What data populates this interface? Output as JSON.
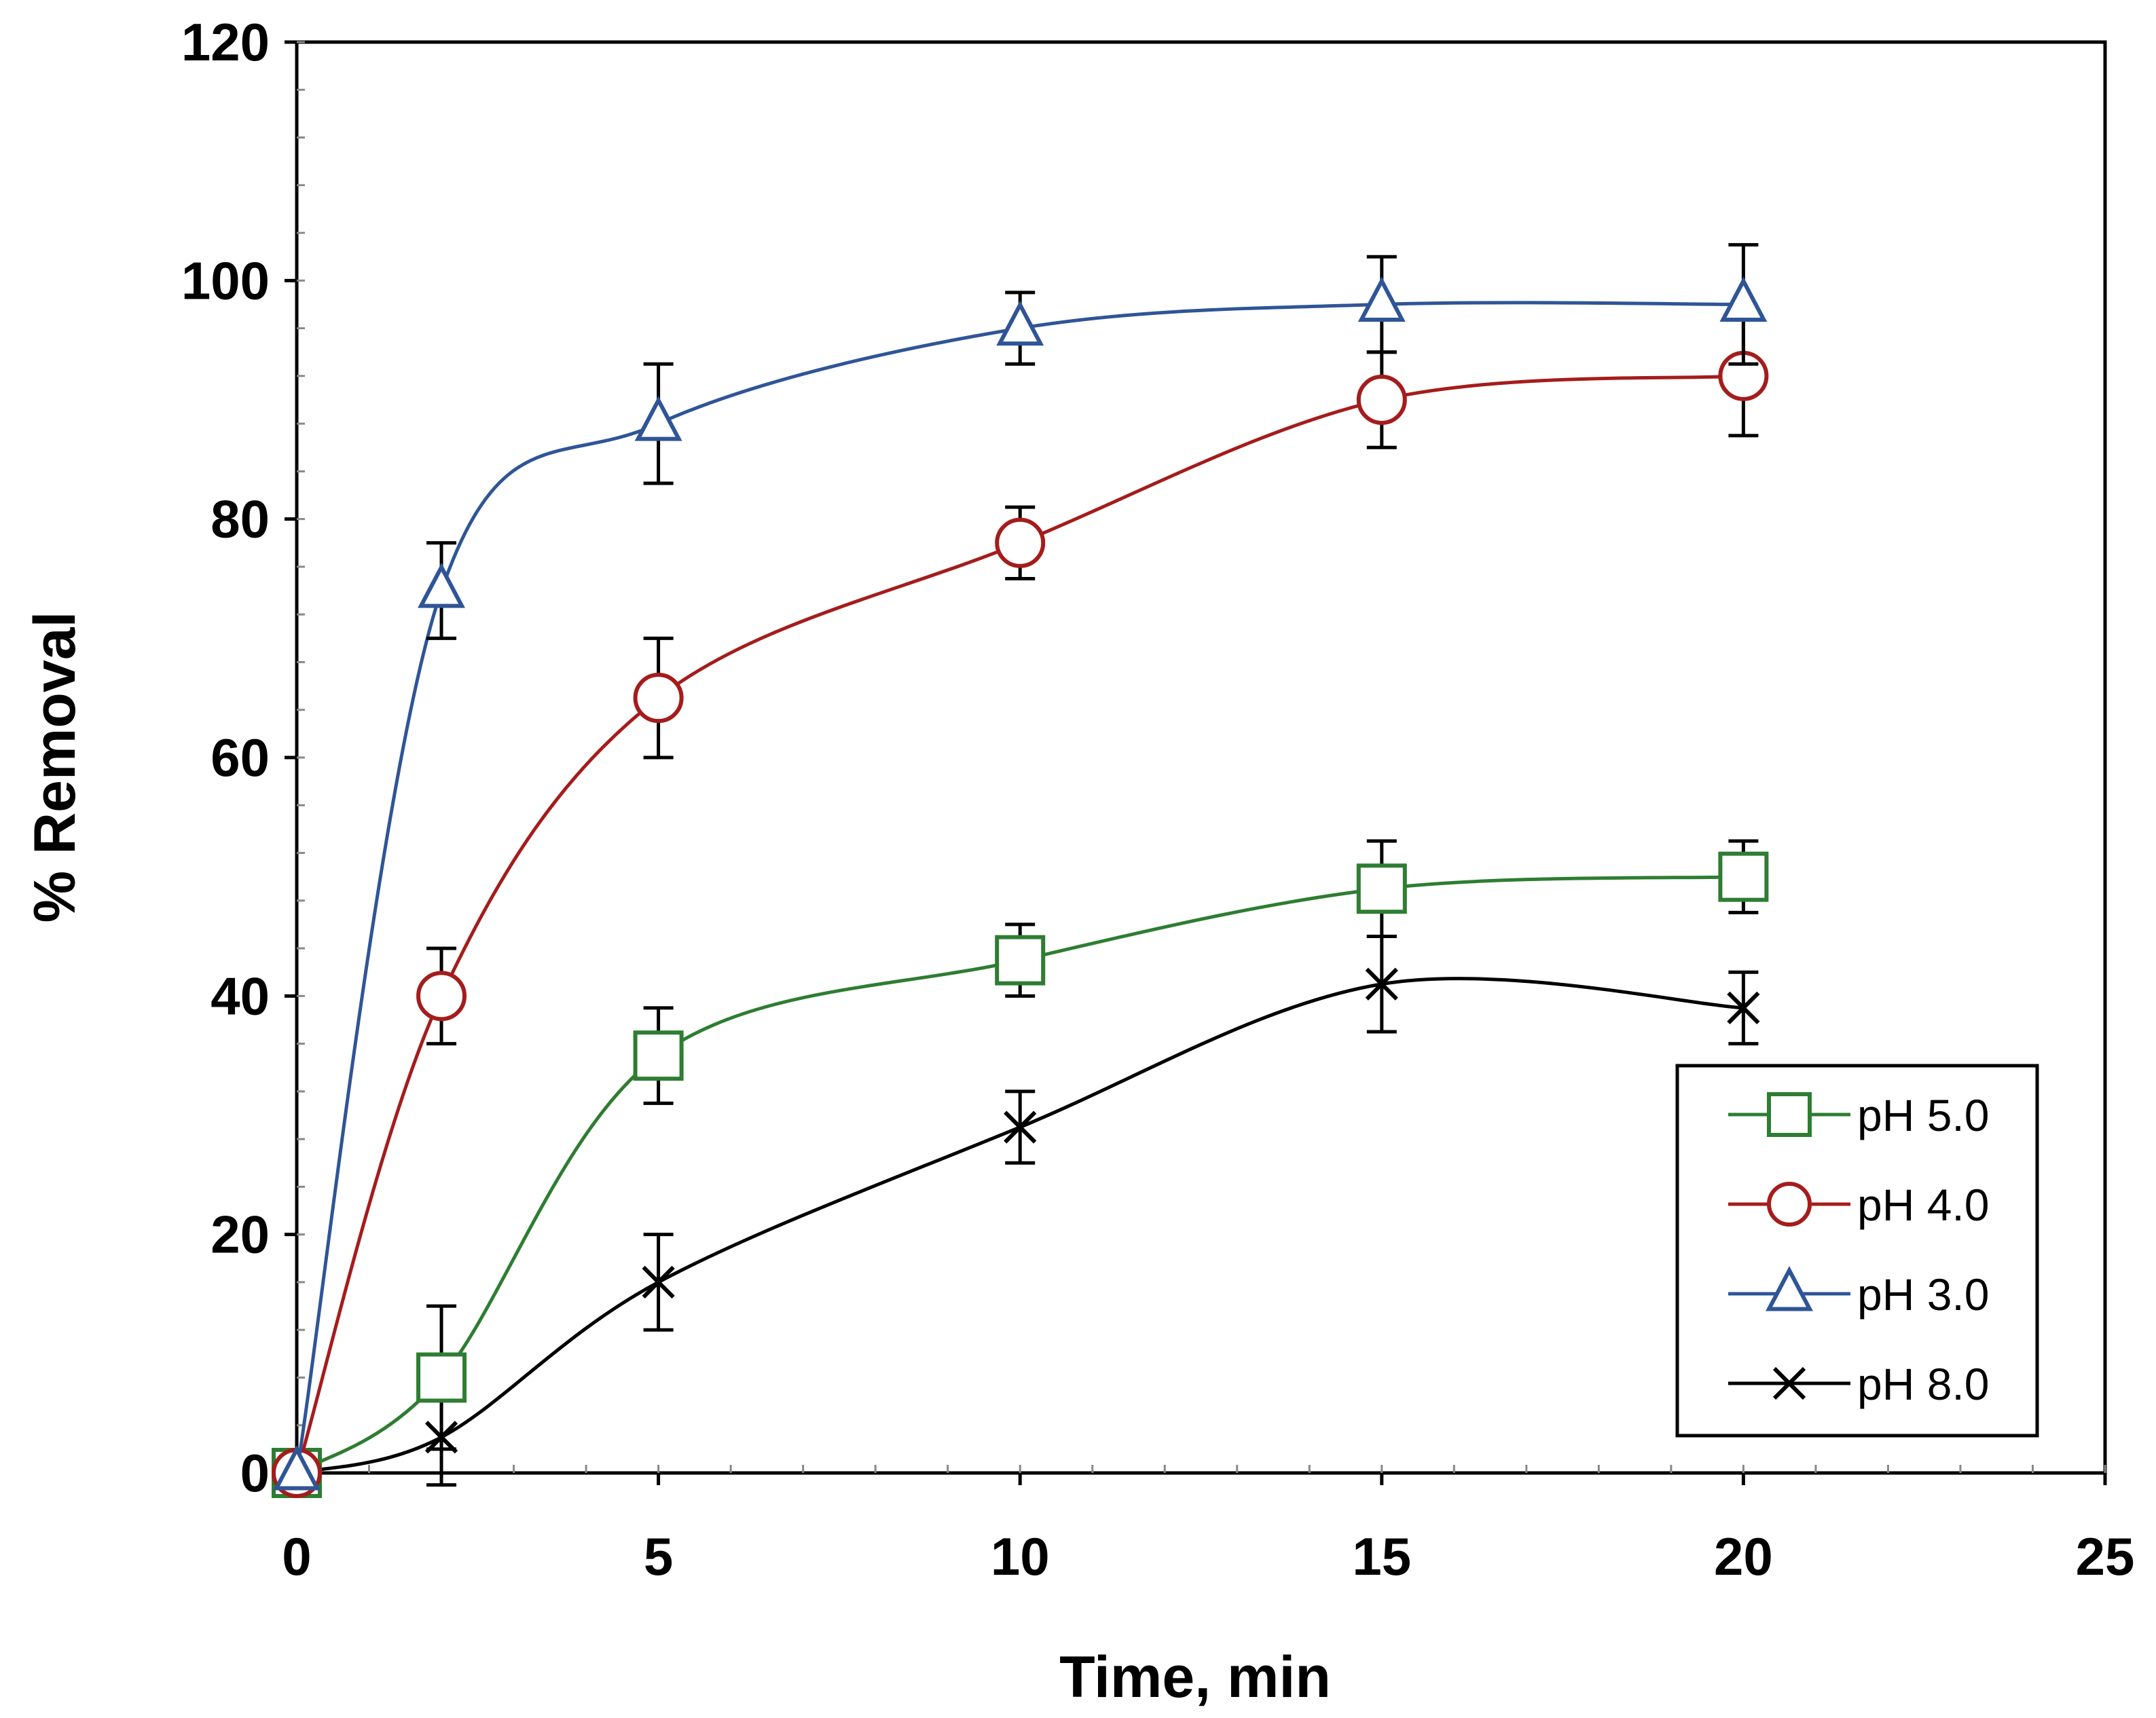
{
  "chart_data": {
    "type": "scatter",
    "xlabel": "Time, min",
    "ylabel": "% Removal",
    "xlim": [
      0,
      25
    ],
    "ylim": [
      0,
      120
    ],
    "xticks": [
      0,
      5,
      10,
      15,
      20,
      25
    ],
    "yticks": [
      0,
      20,
      40,
      60,
      80,
      100,
      120
    ],
    "xtick_labels": [
      "0",
      "5",
      "10",
      "15",
      "20",
      "25"
    ],
    "ytick_labels": [
      "0",
      "20",
      "40",
      "60",
      "80",
      "100",
      "120"
    ],
    "grid": false,
    "legend_position": "bottom-right",
    "lines": "smoothed",
    "series": [
      {
        "name": "pH 5.0",
        "color": "#2E7D32",
        "marker": "square",
        "x": [
          0,
          2,
          5,
          10,
          15,
          20
        ],
        "y": [
          0,
          8,
          35,
          43,
          49,
          50
        ],
        "error": [
          0,
          6,
          4,
          3,
          4,
          3
        ]
      },
      {
        "name": "pH 4.0",
        "color": "#A51C1C",
        "marker": "circle",
        "x": [
          0,
          2,
          5,
          10,
          15,
          20
        ],
        "y": [
          0,
          40,
          65,
          78,
          90,
          92
        ],
        "error": [
          0,
          4,
          5,
          3,
          4,
          5
        ]
      },
      {
        "name": "pH 3.0",
        "color": "#2F5597",
        "marker": "triangle",
        "x": [
          0,
          2,
          5,
          10,
          15,
          20
        ],
        "y": [
          0,
          74,
          88,
          96,
          98,
          98
        ],
        "error": [
          0,
          4,
          5,
          3,
          4,
          5
        ]
      },
      {
        "name": "pH 8.0",
        "color": "#000000",
        "marker": "x",
        "x": [
          0,
          2,
          5,
          10,
          15,
          20
        ],
        "y": [
          0,
          3,
          16,
          29,
          41,
          39
        ],
        "error": [
          0,
          4,
          4,
          3,
          4,
          3
        ]
      }
    ]
  }
}
